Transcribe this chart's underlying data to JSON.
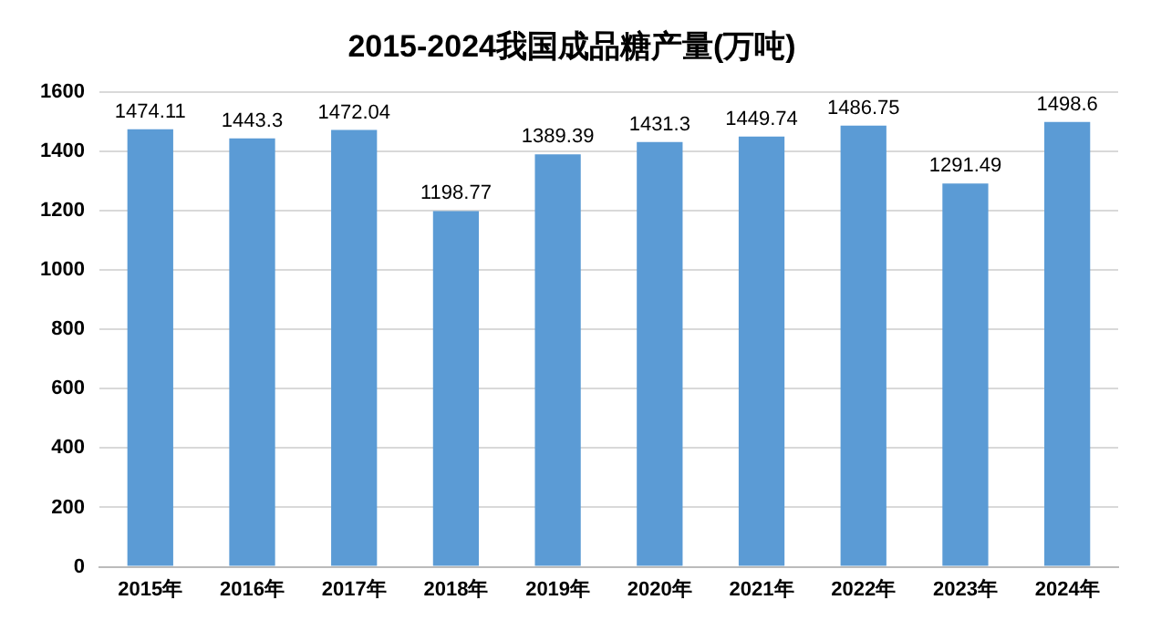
{
  "chart_data": {
    "type": "bar",
    "title": "2015-2024我国成品糖产量(万吨)",
    "categories": [
      "2015年",
      "2016年",
      "2017年",
      "2018年",
      "2019年",
      "2020年",
      "2021年",
      "2022年",
      "2023年",
      "2024年"
    ],
    "values": [
      1474.11,
      1443.3,
      1472.04,
      1198.77,
      1389.39,
      1431.3,
      1449.74,
      1486.75,
      1291.49,
      1498.6
    ],
    "color": "#5b9bd5",
    "ylim": [
      0,
      1600
    ],
    "yticks": [
      0,
      200,
      400,
      600,
      800,
      1000,
      1200,
      1400,
      1600
    ],
    "grid": "y",
    "data_labels": true,
    "legend": false
  }
}
